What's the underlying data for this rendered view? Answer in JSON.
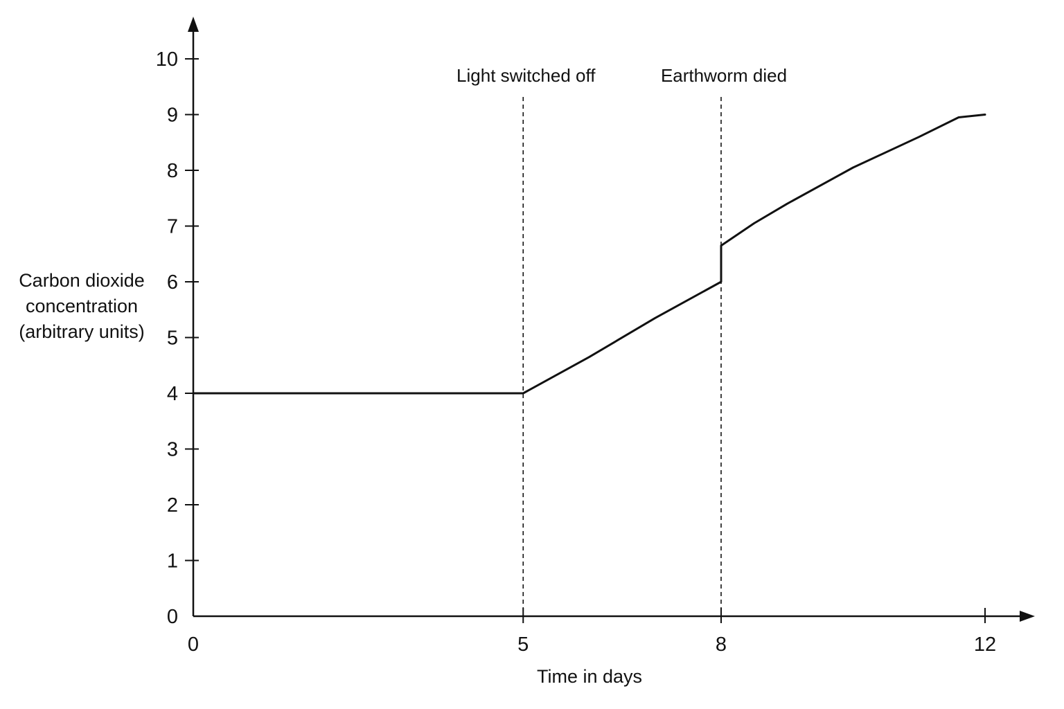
{
  "chart_data": {
    "type": "line",
    "xlabel": "Time in days",
    "ylabel": [
      "Carbon dioxide",
      "concentration",
      "(arbitrary units)"
    ],
    "xlim": [
      0,
      12
    ],
    "ylim": [
      0,
      10
    ],
    "x_ticks": [
      0,
      5,
      8,
      12
    ],
    "y_ticks": [
      0,
      1,
      2,
      3,
      4,
      5,
      6,
      7,
      8,
      9,
      10
    ],
    "grid": false,
    "legend": "none",
    "series": [
      {
        "color": "#111111",
        "points": [
          {
            "x": 0,
            "y": 4.0
          },
          {
            "x": 5,
            "y": 4.0
          },
          {
            "x": 6,
            "y": 4.65
          },
          {
            "x": 7,
            "y": 5.35
          },
          {
            "x": 8,
            "y": 6.0
          },
          {
            "x": 8,
            "y": 6.65
          },
          {
            "x": 8.5,
            "y": 7.05
          },
          {
            "x": 9,
            "y": 7.4
          },
          {
            "x": 10,
            "y": 8.05
          },
          {
            "x": 11,
            "y": 8.6
          },
          {
            "x": 11.6,
            "y": 8.95
          },
          {
            "x": 12,
            "y": 9.0
          }
        ]
      }
    ],
    "annotations": [
      {
        "x": 5,
        "text": "Light switched off",
        "style": "dashed vertical line"
      },
      {
        "x": 8,
        "text": "Earthworm died",
        "style": "dashed vertical line"
      }
    ]
  }
}
